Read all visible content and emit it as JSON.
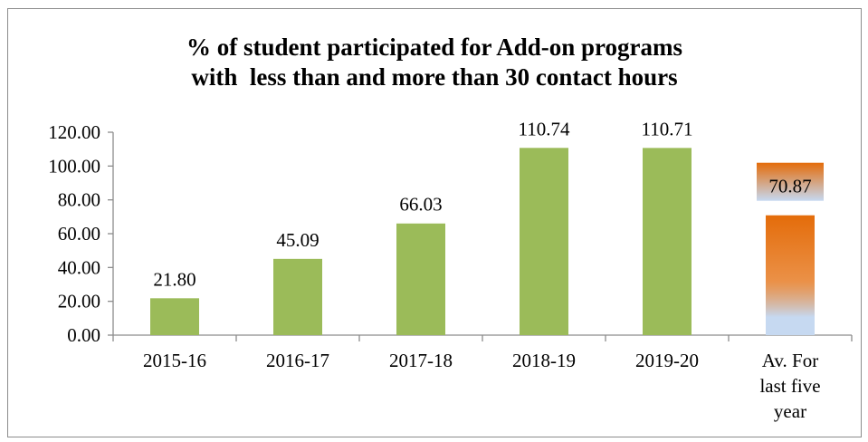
{
  "chart_data": {
    "type": "bar",
    "title": "% of student participated for Add-on programs\nwith  less than and more than 30 contact hours",
    "categories": [
      "2015-16",
      "2016-17",
      "2017-18",
      "2018-19",
      "2019-20",
      "Av. For last five year"
    ],
    "category_label_lines": [
      [
        "2015-16"
      ],
      [
        "2016-17"
      ],
      [
        "2017-18"
      ],
      [
        "2018-19"
      ],
      [
        "2019-20"
      ],
      [
        "Av. For",
        "last five",
        "year"
      ]
    ],
    "values": [
      21.8,
      45.09,
      66.03,
      110.74,
      110.71,
      70.87
    ],
    "value_labels": [
      "21.80",
      "45.09",
      "66.03",
      "110.74",
      "110.71",
      "70.87"
    ],
    "ylim": [
      0,
      120
    ],
    "ytick_values": [
      0,
      20,
      40,
      60,
      80,
      100,
      120
    ],
    "ytick_labels": [
      "0.00",
      "20.00",
      "40.00",
      "60.00",
      "80.00",
      "100.00",
      "120.00"
    ],
    "xlabel": "",
    "ylabel": "",
    "grid": false,
    "legend": "none",
    "colors": {
      "bar": "#9bbb59",
      "average_gradient_top": "#e46c0a",
      "average_gradient_bottom": "#c6d9f1",
      "axis": "#8c8c8c",
      "frame": "#8c8c8c"
    }
  }
}
